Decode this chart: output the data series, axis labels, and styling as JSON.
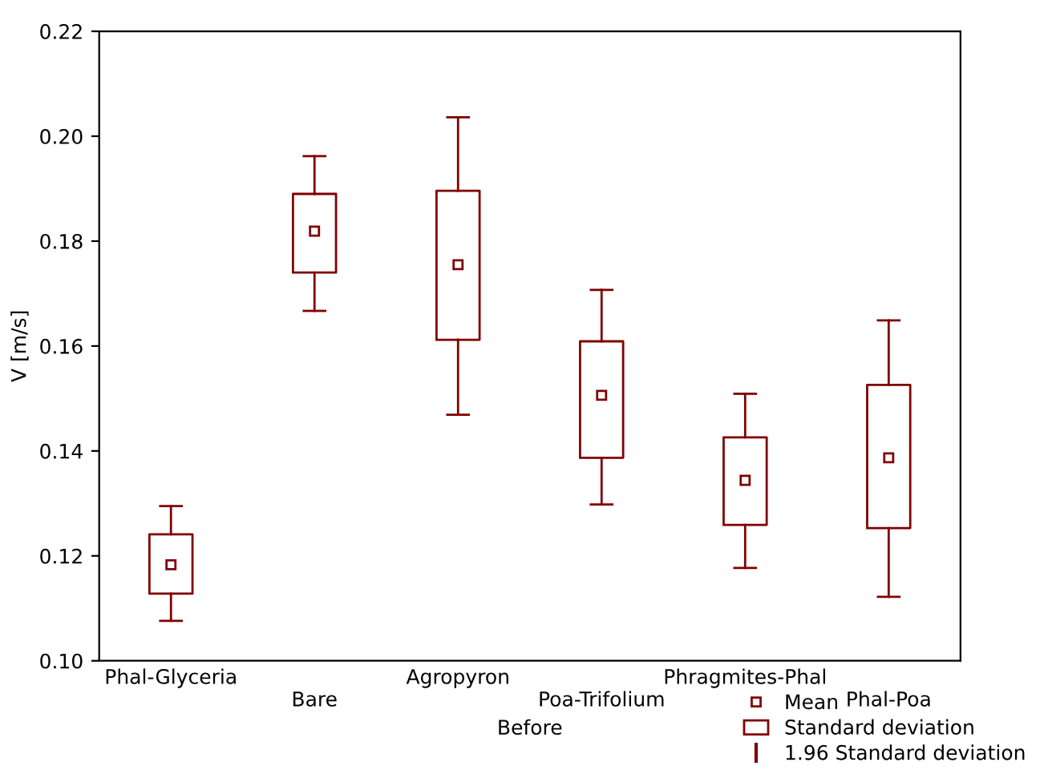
{
  "chart_data": {
    "type": "box",
    "categories": [
      "Phal-Glyceria",
      "Bare",
      "Agropyron",
      "Poa-Trifolium",
      "Phragmites-Phal",
      "Phal-Poa"
    ],
    "series": [
      {
        "color": "#800000",
        "boxes": [
          {
            "low": 0.1076,
            "q1": 0.1128,
            "q3": 0.1241,
            "high": 0.1295,
            "mean": 0.1183
          },
          {
            "low": 0.1667,
            "q1": 0.174,
            "q3": 0.189,
            "high": 0.1962,
            "mean": 0.1819
          },
          {
            "low": 0.1469,
            "q1": 0.1612,
            "q3": 0.1896,
            "high": 0.2036,
            "mean": 0.1755
          },
          {
            "low": 0.1298,
            "q1": 0.1387,
            "q3": 0.1609,
            "high": 0.1707,
            "mean": 0.1506
          },
          {
            "low": 0.1177,
            "q1": 0.1259,
            "q3": 0.1426,
            "high": 0.1509,
            "mean": 0.1344
          },
          {
            "low": 0.1122,
            "q1": 0.1253,
            "q3": 0.1526,
            "high": 0.1649,
            "mean": 0.1387
          }
        ]
      }
    ],
    "annotations": [
      "Mean",
      "Standard deviation",
      "1.96 Standard deviation"
    ],
    "xlabel": "Before",
    "ylabel": "V [m/s]",
    "ylim": [
      0.1,
      0.22
    ],
    "yticks": [
      {
        "value": 0.1,
        "label": "0.10"
      },
      {
        "value": 0.12,
        "label": "0.12"
      },
      {
        "value": 0.14,
        "label": "0.14"
      },
      {
        "value": 0.16,
        "label": "0.16"
      },
      {
        "value": 0.18,
        "label": "0.18"
      },
      {
        "value": 0.2,
        "label": "0.20"
      },
      {
        "value": 0.22,
        "label": "0.22"
      }
    ],
    "grid": false,
    "marker": "square"
  }
}
